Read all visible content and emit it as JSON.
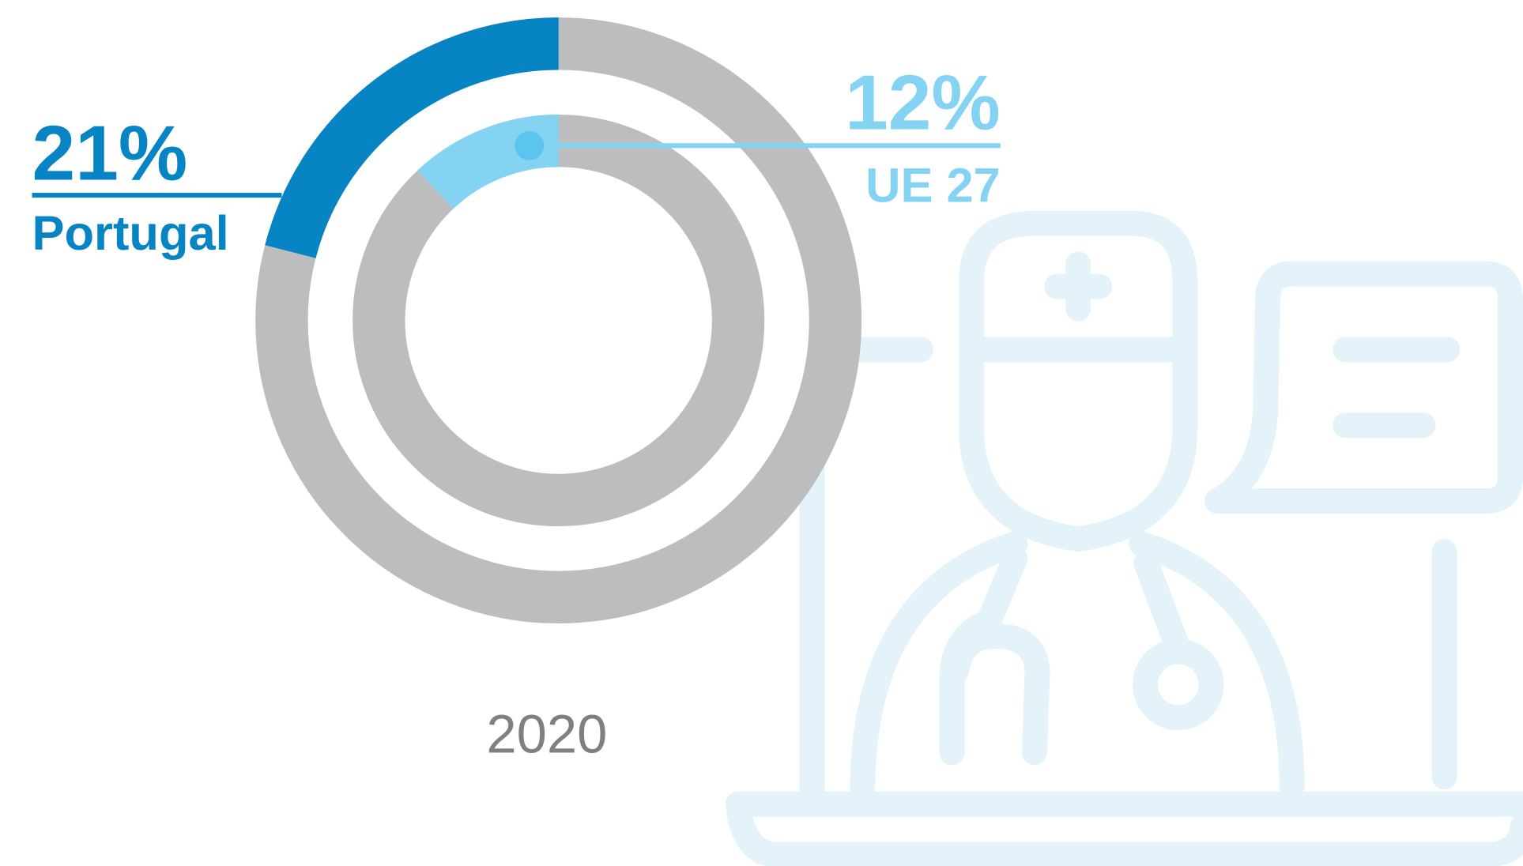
{
  "chart_data": {
    "type": "donut",
    "caption": "2020",
    "rest_color": "#bcbdbf",
    "series": [
      {
        "name": "Portugal",
        "color": "#0784c3",
        "values": [
          21
        ],
        "value_labels": [
          "21%"
        ]
      },
      {
        "name": "UE 27",
        "color": "#84d3f2",
        "values": [
          12
        ],
        "value_labels": [
          "12%"
        ]
      }
    ]
  }
}
